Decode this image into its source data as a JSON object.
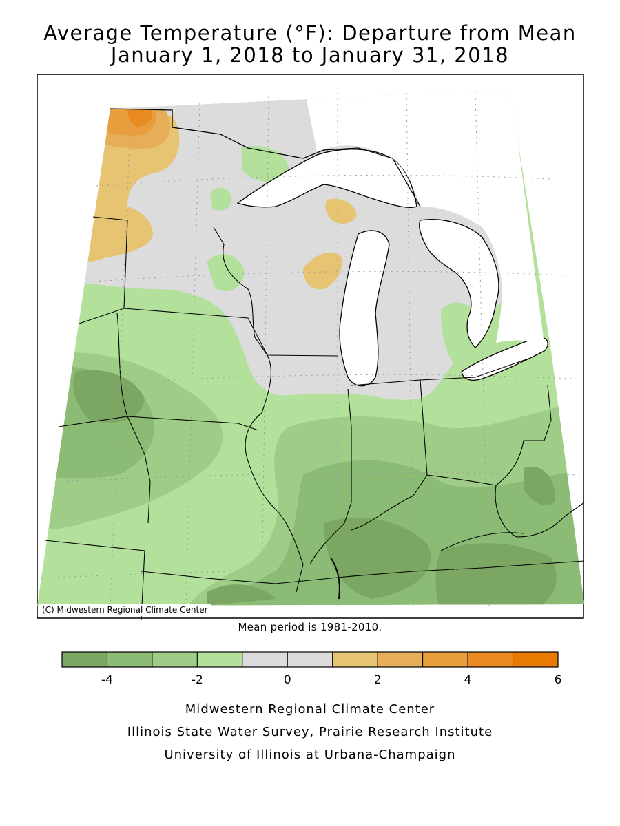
{
  "title": {
    "line1": "Average Temperature (°F): Departure from Mean",
    "line2": "January 1, 2018 to January 31, 2018"
  },
  "map": {
    "credit": "(C) Midwestern Regional Climate Center",
    "mean_period": "Mean period is 1981-2010."
  },
  "legend": {
    "colors": [
      "#7ba763",
      "#8cbb75",
      "#9fcd88",
      "#b3e19b",
      "#dcdcdc",
      "#dcdcdc",
      "#e6c472",
      "#e6ae58",
      "#e89e3c",
      "#ea8a20",
      "#e87a00"
    ],
    "tick_labels": [
      "-4",
      "-2",
      "0",
      "2",
      "4",
      "6"
    ]
  },
  "footer": {
    "line1": "Midwestern Regional Climate Center",
    "line2": "Illinois State Water Survey, Prairie Research Institute",
    "line3": "University of Illinois at Urbana-Champaign"
  }
}
